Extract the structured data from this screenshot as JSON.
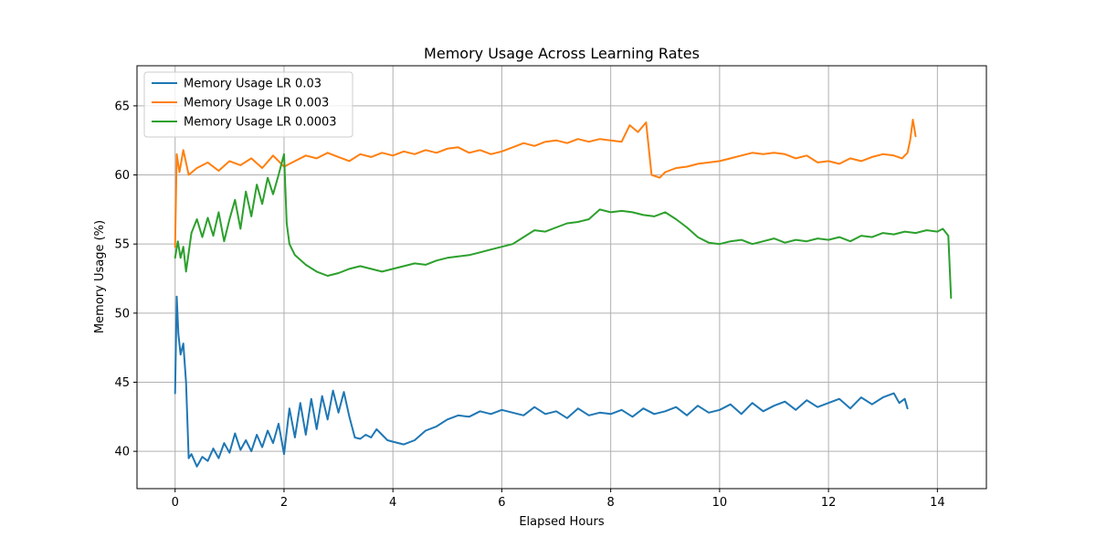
{
  "chart_data": {
    "type": "line",
    "title": "Memory Usage Across Learning Rates",
    "xlabel": "Elapsed Hours",
    "ylabel": "Memory Usage (%)",
    "xlim": [
      -0.7,
      14.9
    ],
    "ylim": [
      37.3,
      67.9
    ],
    "xticks": [
      0,
      2,
      4,
      6,
      8,
      10,
      12,
      14
    ],
    "yticks": [
      40,
      45,
      50,
      55,
      60,
      65
    ],
    "grid": true,
    "legend_position": "top-left",
    "series": [
      {
        "name": "Memory Usage LR 0.03",
        "color": "#1f77b4",
        "x": [
          0,
          0.03,
          0.06,
          0.1,
          0.15,
          0.2,
          0.25,
          0.3,
          0.4,
          0.5,
          0.6,
          0.7,
          0.8,
          0.9,
          1.0,
          1.1,
          1.2,
          1.3,
          1.4,
          1.5,
          1.6,
          1.7,
          1.8,
          1.9,
          2.0,
          2.1,
          2.2,
          2.3,
          2.4,
          2.5,
          2.6,
          2.7,
          2.8,
          2.9,
          3.0,
          3.1,
          3.2,
          3.3,
          3.4,
          3.5,
          3.6,
          3.7,
          3.8,
          3.9,
          4.0,
          4.2,
          4.4,
          4.6,
          4.8,
          5.0,
          5.2,
          5.4,
          5.6,
          5.8,
          6.0,
          6.2,
          6.4,
          6.6,
          6.8,
          7.0,
          7.2,
          7.4,
          7.6,
          7.8,
          8.0,
          8.2,
          8.4,
          8.6,
          8.8,
          9.0,
          9.2,
          9.4,
          9.6,
          9.8,
          10.0,
          10.2,
          10.4,
          10.6,
          10.8,
          11.0,
          11.2,
          11.4,
          11.6,
          11.8,
          12.0,
          12.2,
          12.4,
          12.6,
          12.8,
          13.0,
          13.2,
          13.3,
          13.4,
          13.45
        ],
        "y": [
          44.2,
          51.2,
          48.5,
          47.0,
          47.8,
          45.0,
          39.5,
          39.8,
          38.9,
          39.6,
          39.3,
          40.2,
          39.5,
          40.6,
          39.9,
          41.3,
          40.1,
          40.8,
          40.0,
          41.2,
          40.3,
          41.5,
          40.6,
          42.0,
          39.8,
          43.1,
          41.0,
          43.5,
          41.2,
          43.8,
          41.6,
          44.0,
          42.3,
          44.4,
          42.8,
          44.3,
          42.5,
          41.0,
          40.9,
          41.2,
          41.0,
          41.6,
          41.2,
          40.8,
          40.7,
          40.5,
          40.8,
          41.5,
          41.8,
          42.3,
          42.6,
          42.5,
          42.9,
          42.7,
          43.0,
          42.8,
          42.6,
          43.2,
          42.7,
          42.9,
          42.4,
          43.1,
          42.6,
          42.8,
          42.7,
          43.0,
          42.5,
          43.1,
          42.7,
          42.9,
          43.2,
          42.6,
          43.3,
          42.8,
          43.0,
          43.4,
          42.7,
          43.5,
          42.9,
          43.3,
          43.6,
          43.0,
          43.7,
          43.2,
          43.5,
          43.8,
          43.1,
          43.9,
          43.4,
          43.9,
          44.2,
          43.5,
          43.8,
          43.1
        ]
      },
      {
        "name": "Memory Usage LR 0.003",
        "color": "#ff7f0e",
        "x": [
          0,
          0.03,
          0.08,
          0.15,
          0.25,
          0.4,
          0.6,
          0.8,
          1.0,
          1.2,
          1.4,
          1.6,
          1.8,
          2.0,
          2.2,
          2.4,
          2.6,
          2.8,
          3.0,
          3.2,
          3.4,
          3.6,
          3.8,
          4.0,
          4.2,
          4.4,
          4.6,
          4.8,
          5.0,
          5.2,
          5.4,
          5.6,
          5.8,
          6.0,
          6.2,
          6.4,
          6.6,
          6.8,
          7.0,
          7.2,
          7.4,
          7.6,
          7.8,
          8.0,
          8.2,
          8.35,
          8.5,
          8.65,
          8.75,
          8.9,
          9.0,
          9.2,
          9.4,
          9.6,
          9.8,
          10.0,
          10.2,
          10.4,
          10.6,
          10.8,
          11.0,
          11.2,
          11.4,
          11.6,
          11.8,
          12.0,
          12.2,
          12.4,
          12.6,
          12.8,
          13.0,
          13.2,
          13.35,
          13.45,
          13.5,
          13.55,
          13.6
        ],
        "y": [
          54.8,
          61.5,
          60.2,
          61.8,
          60.0,
          60.5,
          60.9,
          60.3,
          61.0,
          60.7,
          61.2,
          60.5,
          61.4,
          60.6,
          61.0,
          61.4,
          61.2,
          61.6,
          61.3,
          61.0,
          61.5,
          61.3,
          61.6,
          61.4,
          61.7,
          61.5,
          61.8,
          61.6,
          61.9,
          62.0,
          61.6,
          61.8,
          61.5,
          61.7,
          62.0,
          62.3,
          62.1,
          62.4,
          62.5,
          62.3,
          62.6,
          62.4,
          62.6,
          62.5,
          62.4,
          63.6,
          63.1,
          63.8,
          60.0,
          59.8,
          60.2,
          60.5,
          60.6,
          60.8,
          60.9,
          61.0,
          61.2,
          61.4,
          61.6,
          61.5,
          61.6,
          61.5,
          61.2,
          61.4,
          60.9,
          61.0,
          60.8,
          61.2,
          61.0,
          61.3,
          61.5,
          61.4,
          61.2,
          61.6,
          62.5,
          64.0,
          62.8
        ]
      },
      {
        "name": "Memory Usage LR 0.0003",
        "color": "#2ca02c",
        "x": [
          0,
          0.05,
          0.1,
          0.15,
          0.2,
          0.3,
          0.4,
          0.5,
          0.6,
          0.7,
          0.8,
          0.9,
          1.0,
          1.1,
          1.2,
          1.3,
          1.4,
          1.5,
          1.6,
          1.7,
          1.8,
          1.9,
          2.0,
          2.05,
          2.1,
          2.2,
          2.4,
          2.6,
          2.8,
          3.0,
          3.2,
          3.4,
          3.6,
          3.8,
          4.0,
          4.2,
          4.4,
          4.6,
          4.8,
          5.0,
          5.2,
          5.4,
          5.6,
          5.8,
          6.0,
          6.2,
          6.4,
          6.6,
          6.8,
          7.0,
          7.2,
          7.4,
          7.6,
          7.8,
          8.0,
          8.2,
          8.4,
          8.6,
          8.8,
          9.0,
          9.2,
          9.4,
          9.6,
          9.8,
          10.0,
          10.2,
          10.4,
          10.6,
          10.8,
          11.0,
          11.2,
          11.4,
          11.6,
          11.8,
          12.0,
          12.2,
          12.4,
          12.6,
          12.8,
          13.0,
          13.2,
          13.4,
          13.6,
          13.8,
          14.0,
          14.1,
          14.2,
          14.25
        ],
        "y": [
          54.0,
          55.2,
          54.0,
          54.8,
          53.0,
          55.8,
          56.8,
          55.5,
          56.9,
          55.6,
          57.3,
          55.2,
          56.8,
          58.2,
          56.1,
          58.8,
          57.0,
          59.3,
          57.9,
          59.8,
          58.6,
          60.0,
          61.5,
          56.5,
          55.0,
          54.2,
          53.5,
          53.0,
          52.7,
          52.9,
          53.2,
          53.4,
          53.2,
          53.0,
          53.2,
          53.4,
          53.6,
          53.5,
          53.8,
          54.0,
          54.1,
          54.2,
          54.4,
          54.6,
          54.8,
          55.0,
          55.5,
          56.0,
          55.9,
          56.2,
          56.5,
          56.6,
          56.8,
          57.5,
          57.3,
          57.4,
          57.3,
          57.1,
          57.0,
          57.3,
          56.8,
          56.2,
          55.5,
          55.1,
          55.0,
          55.2,
          55.3,
          55.0,
          55.2,
          55.4,
          55.1,
          55.3,
          55.2,
          55.4,
          55.3,
          55.5,
          55.2,
          55.6,
          55.5,
          55.8,
          55.7,
          55.9,
          55.8,
          56.0,
          55.9,
          56.1,
          55.6,
          51.1
        ]
      }
    ]
  }
}
